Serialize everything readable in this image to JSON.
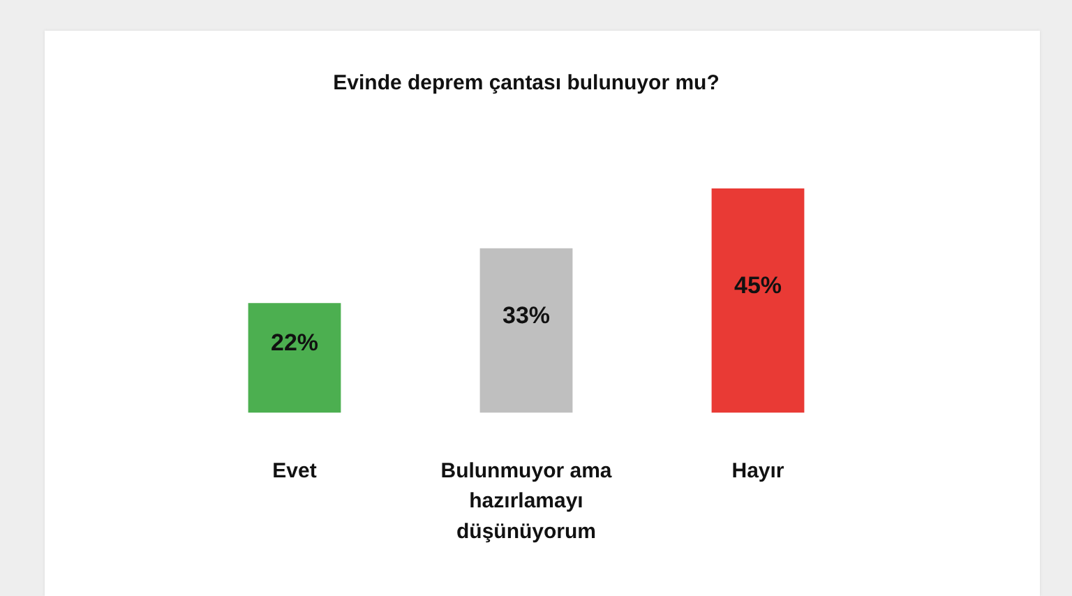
{
  "chart_data": {
    "type": "bar",
    "title": "Evinde deprem çantası bulunuyor mu?",
    "categories": [
      "Evet",
      "Bulunmuyor ama hazırlamayı düşünüyorum",
      "Hayır"
    ],
    "values": [
      22,
      33,
      45
    ],
    "colors": [
      "#4caf50",
      "#bfbfbf",
      "#e93a35"
    ],
    "value_labels": [
      "22%",
      "33%",
      "45%"
    ],
    "tick_labels": "x"
  }
}
